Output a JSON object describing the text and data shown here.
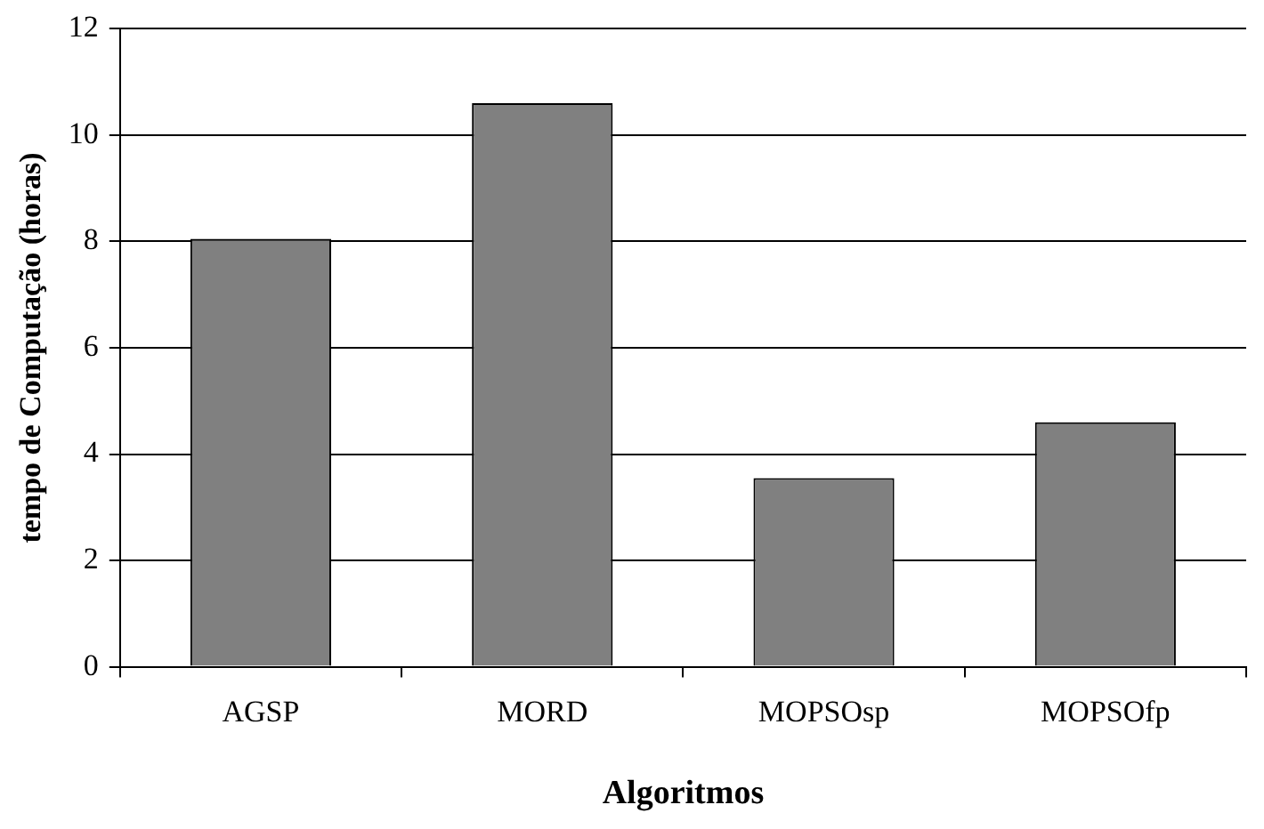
{
  "chart_data": {
    "type": "bar",
    "xlabel": "Algoritmos",
    "ylabel": "tempo de Computação (horas)",
    "categories": [
      "AGSP",
      "MORD",
      "MOPSOsp",
      "MOPSOfp"
    ],
    "values": [
      8.05,
      10.6,
      3.55,
      4.6
    ],
    "color": "#808080",
    "ylim": [
      0,
      12
    ],
    "yticks": [
      0,
      2,
      4,
      6,
      8,
      10,
      12
    ],
    "grid": "y"
  }
}
